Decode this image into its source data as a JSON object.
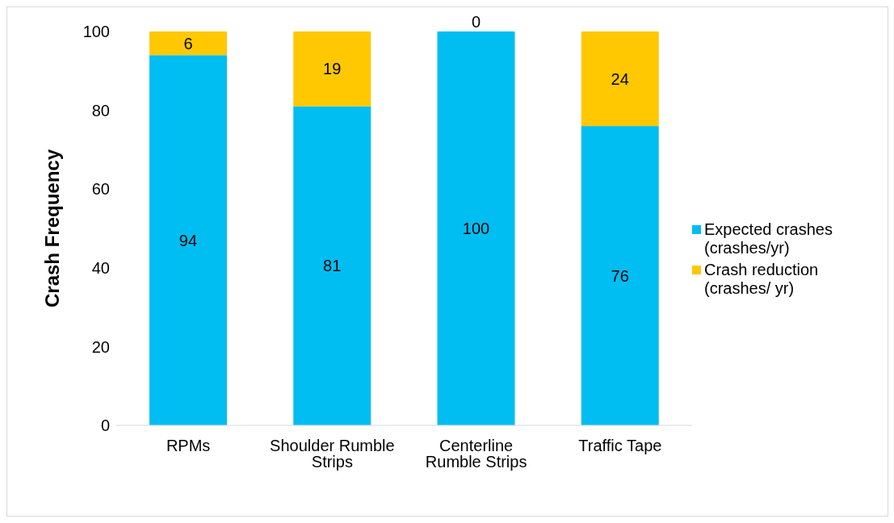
{
  "chart_data": {
    "type": "bar",
    "stacked": true,
    "ylabel": "Crash Frequency",
    "categories": [
      "RPMs",
      "Shoulder Rumble Strips",
      "Centerline Rumble Strips",
      "Traffic Tape"
    ],
    "series": [
      {
        "name": "Expected crashes (crashes/yr)",
        "color": "#00bef2",
        "values": [
          94,
          81,
          100,
          76
        ]
      },
      {
        "name": "Crash reduction (crashes/ yr)",
        "color": "#ffc800",
        "values": [
          6,
          19,
          0,
          24
        ]
      }
    ],
    "ylim": [
      0,
      100
    ],
    "yticks": [
      0,
      20,
      40,
      60,
      80,
      100
    ],
    "grid": false,
    "legend": "right",
    "data_labels": true
  }
}
